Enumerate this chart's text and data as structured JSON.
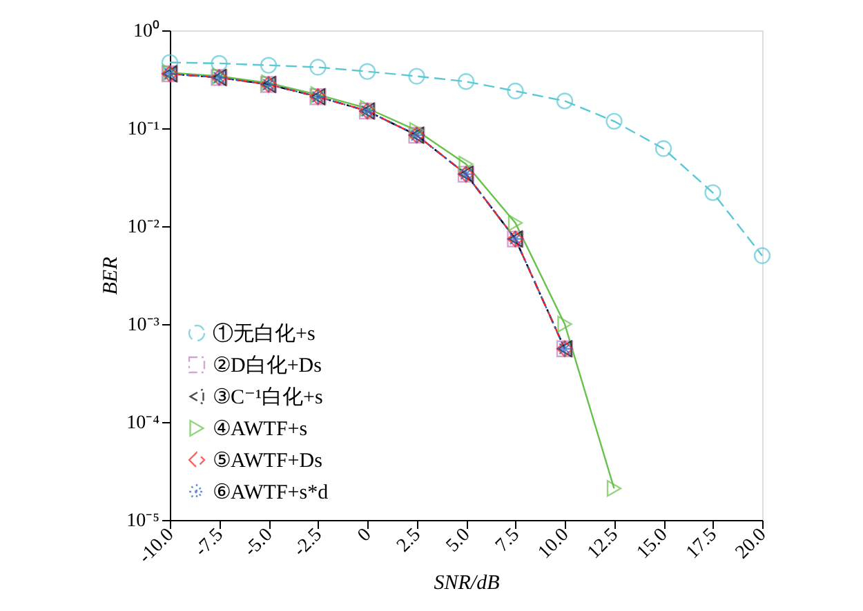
{
  "chart_data": {
    "type": "line",
    "xlabel": "SNR/dB",
    "ylabel": "BER",
    "log": true,
    "grid": false,
    "legend": "bottom left",
    "x": [
      -10,
      -7.5,
      -5,
      -2.5,
      0,
      2.5,
      5,
      7.5,
      10,
      12.5,
      15,
      17.5,
      20
    ],
    "xlim": [
      -10,
      20
    ],
    "xticks": [
      {
        "value": -10,
        "label": "-10.0"
      },
      {
        "value": -7.5,
        "label": "-7.5"
      },
      {
        "value": -5,
        "label": "-5.0"
      },
      {
        "value": -2.5,
        "label": "-2.5"
      },
      0,
      2.5,
      {
        "value": 5,
        "label": "5.0"
      },
      7.5,
      {
        "value": 10,
        "label": "10.0"
      },
      12.5,
      {
        "value": 15,
        "label": "15.0"
      },
      17.5,
      {
        "value": 20,
        "label": "20.0"
      }
    ],
    "ylim": [
      1e-05,
      1
    ],
    "yticks": [
      {
        "value": 1e-05,
        "label": "10⁻⁵"
      },
      {
        "value": 0.0001,
        "label": "10⁻⁴"
      },
      {
        "value": 0.001,
        "label": "10⁻³"
      },
      {
        "value": 0.01,
        "label": "10⁻²"
      },
      {
        "value": 0.1,
        "label": "10⁻¹"
      },
      {
        "value": 1,
        "label": "10⁰"
      }
    ],
    "series": [
      {
        "name": "①无白化+s",
        "color": "#5bc8d6",
        "marker": "circle",
        "line_style": "dashed",
        "values": [
          0.47,
          0.46,
          0.44,
          0.42,
          0.38,
          0.34,
          0.3,
          0.24,
          0.19,
          0.118,
          0.062,
          0.022,
          0.005
        ]
      },
      {
        "name": "②D白化+Ds",
        "color": "#c080c0",
        "marker": "square",
        "line_style": "dashdot",
        "values": [
          0.36,
          0.33,
          0.28,
          0.21,
          0.15,
          0.085,
          0.034,
          0.0074,
          0.00056,
          null,
          null,
          null,
          null
        ]
      },
      {
        "name": "③C⁻¹白化+s",
        "color": "#000000",
        "marker": "triangle-left",
        "line_style": "dashdot",
        "values": [
          0.36,
          0.33,
          0.28,
          0.21,
          0.15,
          0.085,
          0.034,
          0.0074,
          0.00056,
          null,
          null,
          null,
          null
        ]
      },
      {
        "name": "④AWTF+s",
        "color": "#66c24a",
        "marker": "triangle-right",
        "line_style": "solid",
        "values": [
          0.37,
          0.34,
          0.29,
          0.22,
          0.16,
          0.095,
          0.043,
          0.0108,
          0.001,
          2.1e-05,
          null,
          null,
          null
        ]
      },
      {
        "name": "⑤AWTF+Ds",
        "color": "#ff2020",
        "marker": "diamond",
        "line_style": "dashed",
        "values": [
          0.36,
          0.33,
          0.28,
          0.21,
          0.15,
          0.085,
          0.034,
          0.0074,
          0.00056,
          null,
          null,
          null,
          null
        ]
      },
      {
        "name": "⑥AWTF+s*d",
        "color": "#3060c0",
        "marker": "cross",
        "line_style": "dotted",
        "values": [
          0.36,
          0.33,
          0.28,
          0.21,
          0.15,
          0.085,
          0.034,
          0.0074,
          0.00056,
          null,
          null,
          null,
          null
        ]
      }
    ]
  }
}
